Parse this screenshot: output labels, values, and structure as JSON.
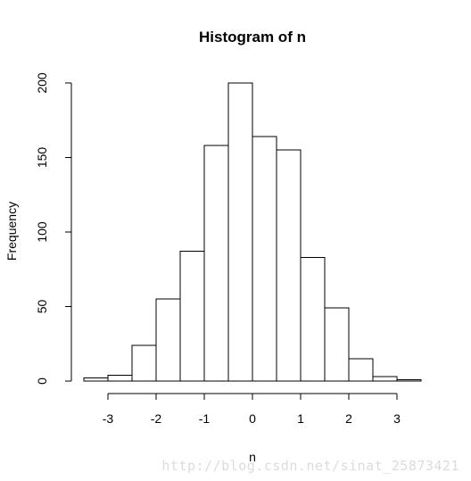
{
  "chart_data": {
    "type": "bar",
    "title": "Histogram of n",
    "xlabel": "n",
    "ylabel": "Frequency",
    "bin_edges": [
      -3.5,
      -3.0,
      -2.5,
      -2.0,
      -1.5,
      -1.0,
      -0.5,
      0.0,
      0.5,
      1.0,
      1.5,
      2.0,
      2.5,
      3.0,
      3.5
    ],
    "values": [
      2,
      4,
      24,
      55,
      87,
      158,
      200,
      164,
      155,
      83,
      49,
      15,
      3,
      1
    ],
    "xlim": [
      -3.5,
      3.5
    ],
    "ylim": [
      0,
      200
    ],
    "xticks": [
      -3,
      -2,
      -1,
      0,
      1,
      2,
      3
    ],
    "xtick_labels": [
      "-3",
      "-2",
      "-1",
      "0",
      "1",
      "2",
      "3"
    ],
    "yticks": [
      0,
      50,
      100,
      150,
      200
    ],
    "ytick_labels": [
      "0",
      "50",
      "100",
      "150",
      "200"
    ],
    "grid": false,
    "legend": "none"
  },
  "watermark": "http://blog.csdn.net/sinat_25873421"
}
